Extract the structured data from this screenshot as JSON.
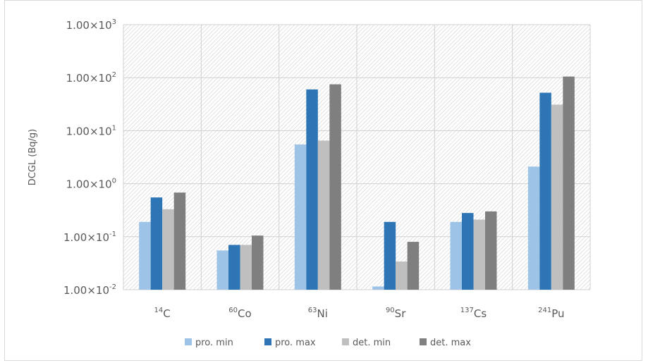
{
  "chart_data": {
    "type": "bar",
    "ylabel": "DCGL (Bq/g)",
    "yscale": "log",
    "ylim": [
      0.01,
      1000
    ],
    "yticks": [
      {
        "value": 0.01,
        "mantissa": "1.00",
        "exp": "-2"
      },
      {
        "value": 0.1,
        "mantissa": "1.00",
        "exp": "-1"
      },
      {
        "value": 1,
        "mantissa": "1.00",
        "exp": "0"
      },
      {
        "value": 10,
        "mantissa": "1.00",
        "exp": "1"
      },
      {
        "value": 100,
        "mantissa": "1.00",
        "exp": "2"
      },
      {
        "value": 1000,
        "mantissa": "1.00",
        "exp": "3"
      }
    ],
    "categories": [
      {
        "mass": "14",
        "element": "C"
      },
      {
        "mass": "60",
        "element": "Co"
      },
      {
        "mass": "63",
        "element": "Ni"
      },
      {
        "mass": "90",
        "element": "Sr"
      },
      {
        "mass": "137",
        "element": "Cs"
      },
      {
        "mass": "241",
        "element": "Pu"
      }
    ],
    "series": [
      {
        "name": "pro. min",
        "color": "#9dc3e6",
        "values": [
          0.19,
          0.055,
          5.5,
          0.0115,
          0.19,
          2.1
        ]
      },
      {
        "name": "pro. max",
        "color": "#2e75b6",
        "values": [
          0.55,
          0.07,
          60,
          0.19,
          0.28,
          52
        ]
      },
      {
        "name": "det. min",
        "color": "#bfbfbf",
        "values": [
          0.33,
          0.07,
          6.5,
          0.034,
          0.21,
          31
        ]
      },
      {
        "name": "det. max",
        "color": "#7f7f7f",
        "values": [
          0.68,
          0.105,
          75,
          0.08,
          0.3,
          105
        ]
      }
    ],
    "grid": true,
    "legend_position": "bottom"
  }
}
